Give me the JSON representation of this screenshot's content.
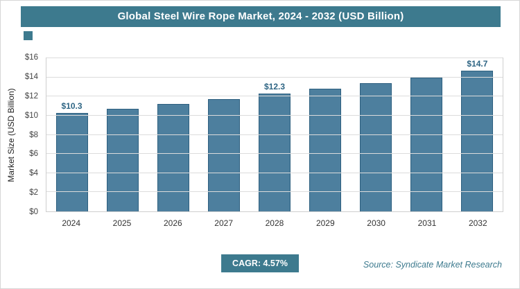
{
  "header": {
    "title": "Global Steel Wire Rope Market, 2024 - 2032 (USD Billion)"
  },
  "chart_data": {
    "type": "bar",
    "title": "Global Steel Wire Rope Market, 2024 - 2032 (USD Billion)",
    "xlabel": "",
    "ylabel": "Market Size (USD Billion)",
    "ylim": [
      0,
      16
    ],
    "ytick_step": 2,
    "ytick_labels": [
      "$0",
      "$2",
      "$4",
      "$6",
      "$8",
      "$10",
      "$12",
      "$14",
      "$16"
    ],
    "categories": [
      "2024",
      "2025",
      "2026",
      "2027",
      "2028",
      "2029",
      "2030",
      "2031",
      "2032"
    ],
    "values": [
      10.3,
      10.7,
      11.2,
      11.7,
      12.3,
      12.8,
      13.4,
      14.0,
      14.7
    ],
    "bar_labels": [
      "$10.3",
      "",
      "",
      "",
      "$12.3",
      "",
      "",
      "",
      "$14.7"
    ],
    "grid": true,
    "legend": "none",
    "bar_color": "#4d7f9e",
    "bar_border_color": "#2d5f7f",
    "label_color": "#2e6584"
  },
  "footer": {
    "cagr_label": "CAGR: 4.57%",
    "source": "Source: Syndicate Market Research"
  },
  "colors": {
    "accent": "#3d7a8e",
    "gridline": "#dcdcdc"
  }
}
